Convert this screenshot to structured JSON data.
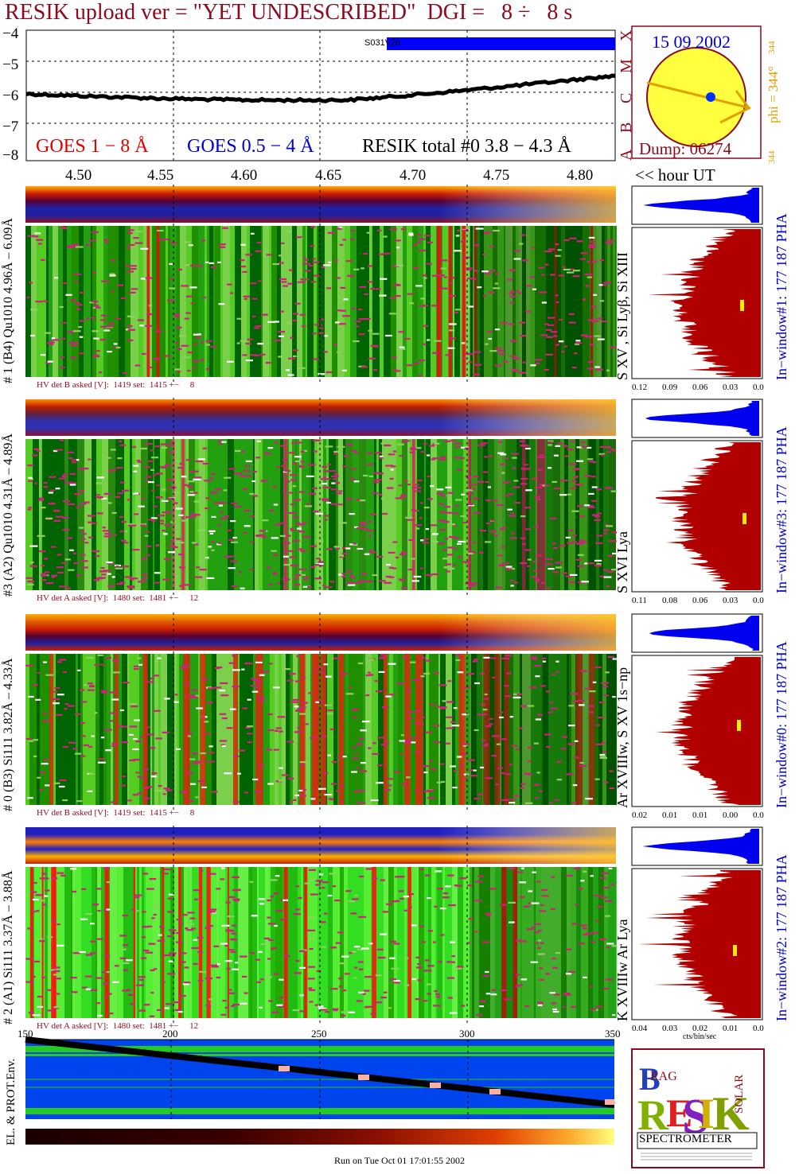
{
  "header": {
    "title": "RESIK upload ver = \"YET UNDESCRIBED\"  DGI =   8 ÷   8 s"
  },
  "lightcurve": {
    "y_ticks": [
      "−4",
      "−5",
      "−6",
      "−7",
      "−8"
    ],
    "goes_class_labels": [
      "A",
      "B",
      "C",
      "M",
      "X"
    ],
    "legend": {
      "goes_long": "GOES 1 − 8 Å",
      "goes_short": "GOES 0.5 − 4 Å",
      "resik_total": "RESIK total #0  3.8 − 4.3 Å"
    },
    "bar_label": "S031V2b",
    "colors": {
      "goes_long": "#e00000",
      "goes_short": "#0000cc",
      "curve": "#000000",
      "bar": "#0000ff"
    }
  },
  "time_axis": {
    "ticks": [
      "4.50",
      "4.55",
      "4.60",
      "4.65",
      "4.70",
      "4.75",
      "4.80"
    ],
    "unit_label": "<< hour UT"
  },
  "sun": {
    "date": "15 09 2002",
    "phi_label": "phi = 344°",
    "phi_top": "344",
    "phi_bottom": "344",
    "dump": "Dump: 06274"
  },
  "panels": [
    {
      "channel": "# 1 (B4) Qu1010 4.96Å – 6.09Å",
      "lines": "S XV , Si Lyβ, Si XIII",
      "window": "In−window#1:  177 187 PHA",
      "hv": "HV det B asked [V]:  1419 set:  1415 +−     8",
      "pha_ticks": [
        "0.12",
        "0.09",
        "0.06",
        "0.03",
        "0.00"
      ]
    },
    {
      "channel": "#3 (A2) Qu1010  4.31Å – 4.89Å",
      "lines": "S XVI Lya",
      "window": "In−window#3:  177 187 PHA",
      "hv": "HV det A asked [V]:  1480 set:  1481 +−     12",
      "pha_ticks": [
        "0.11",
        "0.08",
        "0.06",
        "0.03",
        "0.00"
      ]
    },
    {
      "channel": "# 0 (B3) Si111  3.82Å – 4.33Å",
      "lines": "Ar XVIIIw, S XV 1s−np",
      "window": "In−window#0:  177 187 PHA",
      "hv": "HV det B asked [V]:  1419 set:  1415 +−     8",
      "pha_ticks": [
        "0.02",
        "0.01",
        "0.01",
        "0.00",
        "0.00"
      ]
    },
    {
      "channel": "# 2 (A1) Si111  3.37Å –  3.88Å",
      "lines": "K XVIIIw  Ar Lya",
      "window": "In−window#2:  177 187 PHA",
      "hv": "HV det A asked [V]:  1480 set:  1481 +−     12",
      "pha_ticks": [
        "0.04",
        "0.03",
        "0.02",
        "0.01",
        "0.00"
      ],
      "pha_xlabel": "cts/bin/sec"
    }
  ],
  "environment": {
    "label": "EL. & PROT.Env.",
    "ticks": [
      "150",
      "200",
      "250",
      "300",
      "350"
    ]
  },
  "logo": {
    "lines": [
      "BRAG",
      "RESIK",
      "SOLAR",
      "SPECTROMETER"
    ]
  },
  "footer": {
    "run": "Run on Tue Oct 01 17:01:55 2002"
  }
}
